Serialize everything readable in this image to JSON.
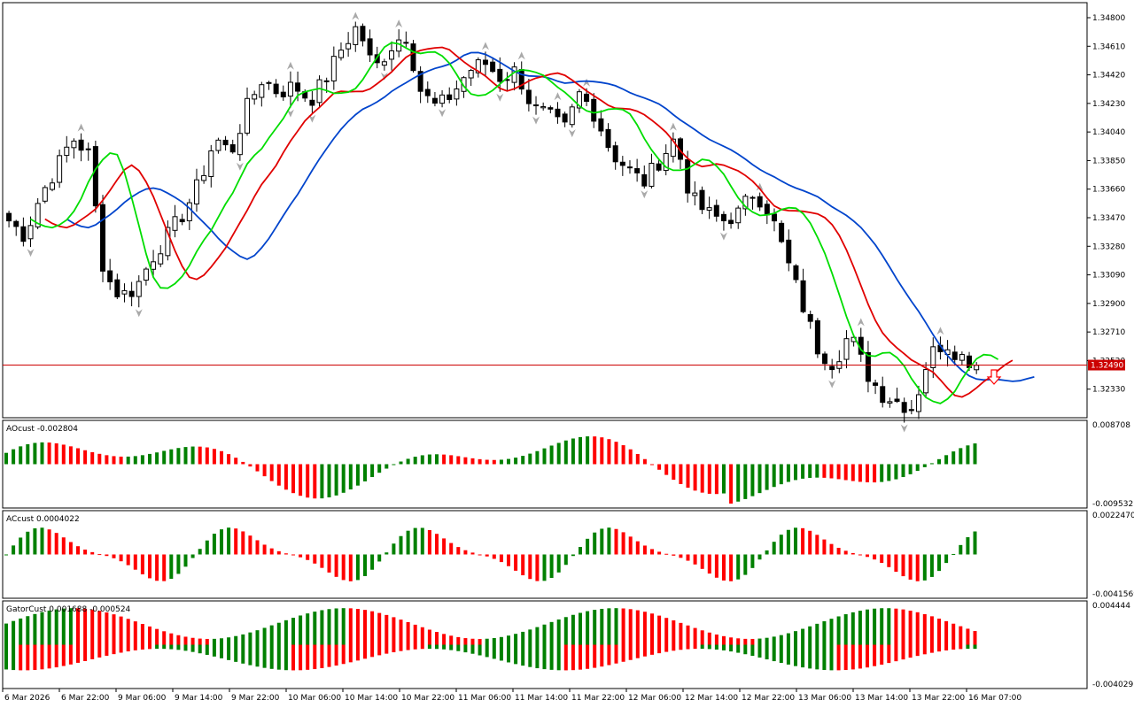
{
  "chart_data": {
    "type": "candlestick",
    "main": {
      "price_ticks": [
        "1.34800",
        "1.34610",
        "1.34420",
        "1.34230",
        "1.34040",
        "1.33850",
        "1.33660",
        "1.33470",
        "1.33280",
        "1.33090",
        "1.32900",
        "1.32710",
        "1.32520",
        "1.32330"
      ],
      "current_price": "1.32490",
      "ylim": [
        1.3214,
        1.349
      ]
    },
    "time_labels": [
      "6 Mar 2026",
      "6 Mar 22:00",
      "9 Mar 06:00",
      "9 Mar 14:00",
      "9 Mar 22:00",
      "10 Mar 06:00",
      "10 Mar 14:00",
      "10 Mar 22:00",
      "11 Mar 06:00",
      "11 Mar 14:00",
      "11 Mar 22:00",
      "12 Mar 06:00",
      "12 Mar 14:00",
      "12 Mar 22:00",
      "13 Mar 06:00",
      "13 Mar 14:00",
      "13 Mar 22:00",
      "16 Mar 07:00"
    ],
    "close_path": [
      1.3345,
      1.3335,
      1.3362,
      1.338,
      1.34,
      1.339,
      1.331,
      1.3295,
      1.33,
      1.332,
      1.3335,
      1.335,
      1.337,
      1.34,
      1.339,
      1.342,
      1.344,
      1.343,
      1.3435,
      1.3425,
      1.344,
      1.346,
      1.3475,
      1.3445,
      1.346,
      1.347,
      1.343,
      1.342,
      1.343,
      1.3445,
      1.345,
      1.344,
      1.3445,
      1.342,
      1.3415,
      1.3405,
      1.343,
      1.3415,
      1.339,
      1.338,
      1.337,
      1.3385,
      1.34,
      1.336,
      1.335,
      1.3345,
      1.335,
      1.3365,
      1.335,
      1.332,
      1.329,
      1.326,
      1.325,
      1.327,
      1.3245,
      1.323,
      1.3225,
      1.322,
      1.3255,
      1.3265,
      1.3255,
      1.325
    ],
    "indicators": [
      {
        "name": "AOcust",
        "values_text": "-0.002804",
        "max": "0.008708",
        "min": "-0.009532"
      },
      {
        "name": "ACcust",
        "values_text": "0.0004022",
        "max": "0.0022470",
        "min": "-0.0041569"
      },
      {
        "name": "GatorCust",
        "values_text": "0.001688 -0.000524",
        "max": "0.004444",
        "min": "-0.004029"
      }
    ],
    "colors": {
      "up": "#008000",
      "down": "#ff0000",
      "jaw": "#0044cc",
      "teeth": "#e00000",
      "lips": "#00dd00",
      "fractal": "#a9a9a9",
      "price_line": "#cc0000"
    },
    "grid": false
  }
}
